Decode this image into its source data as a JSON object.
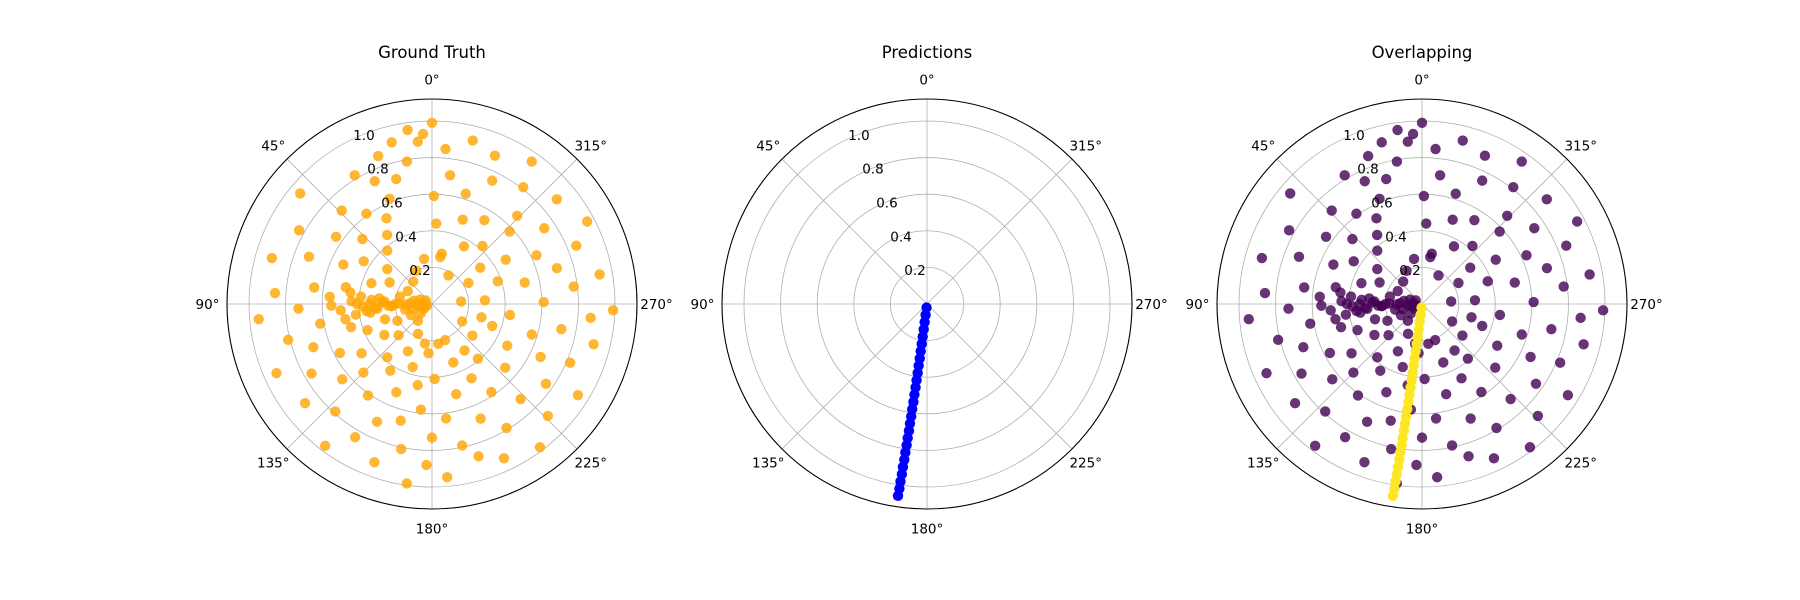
{
  "figure": {
    "panels": [
      {
        "title": "Ground Truth"
      },
      {
        "title": "Predictions"
      },
      {
        "title": "Overlapping"
      }
    ]
  },
  "chart_data": [
    {
      "type": "scatter",
      "subtype": "polar",
      "title": "Ground Truth",
      "theta_direction": "clockwise",
      "theta_zero": "top",
      "angle_ticks": [
        "0°",
        "45°",
        "90°",
        "135°",
        "180°",
        "225°",
        "270°",
        "315°"
      ],
      "r_ticks": [
        "0.2",
        "0.4",
        "0.6",
        "0.8",
        "1.0"
      ],
      "r_lim": [
        0,
        1.12
      ],
      "grid": true,
      "series": [
        {
          "color": "#ffa500",
          "alpha": 0.8,
          "note_points": "points: [theta_degrees, r]",
          "points": [
            [
              0,
              0.99
            ],
            [
              3,
              0.93
            ],
            [
              5,
              0.89
            ],
            [
              8,
              0.96
            ],
            [
              10,
              0.79
            ],
            [
              14,
              0.91
            ],
            [
              16,
              0.71
            ],
            [
              20,
              0.86
            ],
            [
              22,
              0.62
            ],
            [
              25,
              0.74
            ],
            [
              28,
              0.53
            ],
            [
              31,
              0.82
            ],
            [
              33,
              0.45
            ],
            [
              36,
              0.61
            ],
            [
              40,
              0.38
            ],
            [
              44,
              0.71
            ],
            [
              47,
              0.52
            ],
            [
              50,
              0.94
            ],
            [
              52,
              0.31
            ],
            [
              55,
              0.64
            ],
            [
              58,
              0.44
            ],
            [
              61,
              0.83
            ],
            [
              63,
              0.26
            ],
            [
              66,
              0.53
            ],
            [
              69,
              0.72
            ],
            [
              71,
              0.35
            ],
            [
              74,
              0.91
            ],
            [
              77,
              0.18
            ],
            [
              79,
              0.48
            ],
            [
              82,
              0.65
            ],
            [
              84,
              0.29
            ],
            [
              86,
              0.86
            ],
            [
              88,
              0.12
            ],
            [
              90,
              0.41
            ],
            [
              91,
              0.55
            ],
            [
              92,
              0.73
            ],
            [
              93,
              0.22
            ],
            [
              95,
              0.95
            ],
            [
              96,
              0.08
            ],
            [
              98,
              0.34
            ],
            [
              100,
              0.62
            ],
            [
              102,
              0.15
            ],
            [
              104,
              0.81
            ],
            [
              106,
              0.46
            ],
            [
              108,
              0.27
            ],
            [
              110,
              0.69
            ],
            [
              112,
              0.38
            ],
            [
              114,
              0.93
            ],
            [
              116,
              0.21
            ],
            [
              118,
              0.57
            ],
            [
              120,
              0.76
            ],
            [
              123,
              0.31
            ],
            [
              125,
              0.47
            ],
            [
              128,
              0.88
            ],
            [
              130,
              0.64
            ],
            [
              133,
              0.25
            ],
            [
              135,
              0.53
            ],
            [
              138,
              0.79
            ],
            [
              140,
              0.38
            ],
            [
              143,
              0.97
            ],
            [
              145,
              0.61
            ],
            [
              148,
              0.43
            ],
            [
              150,
              0.84
            ],
            [
              153,
              0.29
            ],
            [
              155,
              0.71
            ],
            [
              158,
              0.52
            ],
            [
              160,
              0.92
            ],
            [
              163,
              0.36
            ],
            [
              165,
              0.66
            ],
            [
              168,
              0.81
            ],
            [
              170,
              0.45
            ],
            [
              172,
              0.99
            ],
            [
              174,
              0.58
            ],
            [
              176,
              0.27
            ],
            [
              178,
              0.88
            ],
            [
              180,
              0.73
            ],
            [
              182,
              0.41
            ],
            [
              185,
              0.95
            ],
            [
              187,
              0.63
            ],
            [
              189,
              0.22
            ],
            [
              192,
              0.79
            ],
            [
              195,
              0.51
            ],
            [
              197,
              0.87
            ],
            [
              200,
              0.34
            ],
            [
              203,
              0.68
            ],
            [
              205,
              0.93
            ],
            [
              208,
              0.46
            ],
            [
              211,
              0.79
            ],
            [
              214,
              0.58
            ],
            [
              217,
              0.98
            ],
            [
              220,
              0.39
            ],
            [
              223,
              0.71
            ],
            [
              226,
              0.88
            ],
            [
              229,
              0.53
            ],
            [
              232,
              0.28
            ],
            [
              235,
              0.76
            ],
            [
              238,
              0.94
            ],
            [
              241,
              0.47
            ],
            [
              244,
              0.66
            ],
            [
              247,
              0.82
            ],
            [
              250,
              0.35
            ],
            [
              253,
              0.57
            ],
            [
              256,
              0.91
            ],
            [
              259,
              0.72
            ],
            [
              262,
              0.43
            ],
            [
              265,
              0.87
            ],
            [
              268,
              0.99
            ],
            [
              271,
              0.61
            ],
            [
              274,
              0.29
            ],
            [
              277,
              0.78
            ],
            [
              280,
              0.93
            ],
            [
              283,
              0.52
            ],
            [
              286,
              0.71
            ],
            [
              289,
              0.38
            ],
            [
              292,
              0.85
            ],
            [
              295,
              0.63
            ],
            [
              298,
              0.96
            ],
            [
              301,
              0.47
            ],
            [
              304,
              0.74
            ],
            [
              307,
              0.33
            ],
            [
              310,
              0.89
            ],
            [
              313,
              0.58
            ],
            [
              316,
              0.67
            ],
            [
              319,
              0.42
            ],
            [
              322,
              0.81
            ],
            [
              325,
              0.95
            ],
            [
              328,
              0.54
            ],
            [
              331,
              0.36
            ],
            [
              334,
              0.75
            ],
            [
              337,
              0.88
            ],
            [
              340,
              0.49
            ],
            [
              343,
              0.63
            ],
            [
              346,
              0.92
            ],
            [
              349,
              0.28
            ],
            [
              352,
              0.71
            ],
            [
              355,
              0.85
            ],
            [
              357,
              0.44
            ],
            [
              359,
              0.59
            ],
            [
              85,
              0.05
            ],
            [
              95,
              0.04
            ],
            [
              100,
              0.06
            ],
            [
              110,
              0.03
            ],
            [
              70,
              0.07
            ],
            [
              120,
              0.05
            ],
            [
              60,
              0.04
            ],
            [
              130,
              0.08
            ],
            [
              80,
              0.1
            ],
            [
              105,
              0.11
            ],
            [
              90,
              0.2
            ],
            [
              92,
              0.24
            ],
            [
              88,
              0.27
            ],
            [
              94,
              0.31
            ],
            [
              86,
              0.33
            ],
            [
              96,
              0.36
            ],
            [
              84,
              0.39
            ],
            [
              98,
              0.42
            ],
            [
              82,
              0.45
            ],
            [
              100,
              0.48
            ],
            [
              91,
              0.14
            ],
            [
              89,
              0.18
            ],
            [
              93,
              0.22
            ],
            [
              87,
              0.26
            ],
            [
              95,
              0.3
            ],
            [
              90,
              0.34
            ],
            [
              92,
              0.38
            ],
            [
              88,
              0.44
            ],
            [
              94,
              0.5
            ],
            [
              86,
              0.56
            ],
            [
              62,
              0.15
            ],
            [
              118,
              0.13
            ],
            [
              40,
              0.16
            ],
            [
              140,
              0.12
            ],
            [
              25,
              0.2
            ],
            [
              155,
              0.18
            ],
            [
              10,
              0.25
            ],
            [
              170,
              0.22
            ],
            [
              200,
              0.21
            ],
            [
              240,
              0.19
            ],
            [
              275,
              0.16
            ],
            [
              300,
              0.23
            ],
            [
              330,
              0.18
            ],
            [
              350,
              0.26
            ],
            [
              215,
              0.31
            ],
            [
              255,
              0.28
            ]
          ]
        }
      ]
    },
    {
      "type": "scatter",
      "subtype": "polar",
      "title": "Predictions",
      "theta_direction": "clockwise",
      "theta_zero": "top",
      "angle_ticks": [
        "0°",
        "45°",
        "90°",
        "135°",
        "180°",
        "225°",
        "270°",
        "315°"
      ],
      "r_ticks": [
        "0.2",
        "0.4",
        "0.6",
        "0.8",
        "1.0"
      ],
      "r_lim": [
        0,
        1.12
      ],
      "grid": true,
      "series": [
        {
          "color": "#0000ff",
          "alpha": 1.0,
          "note_points": "points: [theta_degrees, r] — densely packed along a single ray near 172°",
          "points": [
            [
              172.8,
              0.02
            ],
            [
              172.7,
              0.06
            ],
            [
              172.6,
              0.1
            ],
            [
              172.6,
              0.14
            ],
            [
              172.5,
              0.18
            ],
            [
              172.5,
              0.22
            ],
            [
              172.4,
              0.26
            ],
            [
              172.4,
              0.3
            ],
            [
              172.3,
              0.34
            ],
            [
              172.3,
              0.38
            ],
            [
              172.2,
              0.42
            ],
            [
              172.2,
              0.46
            ],
            [
              172.1,
              0.5
            ],
            [
              172.1,
              0.54
            ],
            [
              172.0,
              0.58
            ],
            [
              172.0,
              0.62
            ],
            [
              171.9,
              0.66
            ],
            [
              171.9,
              0.7
            ],
            [
              171.8,
              0.74
            ],
            [
              171.8,
              0.78
            ],
            [
              171.7,
              0.82
            ],
            [
              171.7,
              0.86
            ],
            [
              171.6,
              0.9
            ],
            [
              171.6,
              0.94
            ],
            [
              171.5,
              0.98
            ],
            [
              171.5,
              1.02
            ],
            [
              171.4,
              1.06
            ]
          ]
        }
      ]
    },
    {
      "type": "scatter",
      "subtype": "polar",
      "title": "Overlapping",
      "theta_direction": "clockwise",
      "theta_zero": "top",
      "angle_ticks": [
        "0°",
        "45°",
        "90°",
        "135°",
        "180°",
        "225°",
        "270°",
        "315°"
      ],
      "r_ticks": [
        "0.2",
        "0.4",
        "0.6",
        "0.8",
        "1.0"
      ],
      "r_lim": [
        0,
        1.12
      ],
      "grid": true,
      "series": [
        {
          "color": "#440154",
          "alpha": 0.8,
          "note_points": "ground truth points in viridis low color",
          "points_ref": "same_as_ground_truth"
        },
        {
          "color": "#fde725",
          "alpha": 1.0,
          "note_points": "prediction points in viridis high color",
          "points_ref": "same_as_predictions"
        }
      ]
    }
  ]
}
